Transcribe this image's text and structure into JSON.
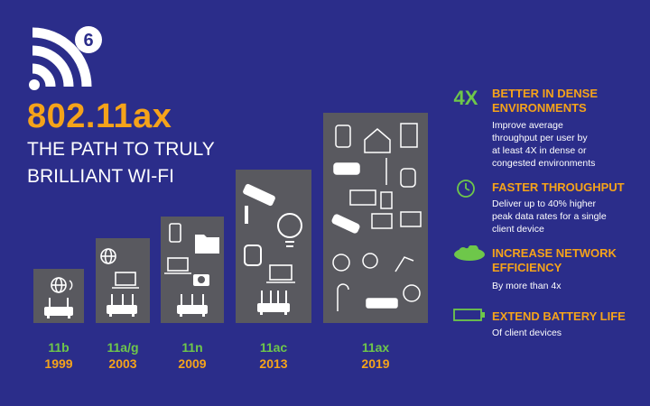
{
  "header": {
    "title": "802.11ax",
    "subtitle_line1": "THE PATH TO TRULY",
    "subtitle_line2": "BRILLIANT WI-FI",
    "logo_badge": "6"
  },
  "generations": [
    {
      "name": "11b",
      "year": "1999"
    },
    {
      "name": "11a/g",
      "year": "2003"
    },
    {
      "name": "11n",
      "year": "2009"
    },
    {
      "name": "11ac",
      "year": "2013"
    },
    {
      "name": "11ax",
      "year": "2019"
    }
  ],
  "features": [
    {
      "icon_text": "4X",
      "icon": "four-x-icon",
      "title_line1": "BETTER IN DENSE",
      "title_line2": "ENVIRONMENTS",
      "desc_lines": [
        "Improve average",
        "throughput per user by",
        "at least 4X in dense or",
        "congested environments"
      ]
    },
    {
      "icon": "stopwatch-icon",
      "title_line1": "FASTER THROUGHPUT",
      "desc_lines": [
        "Deliver up to 40% higher",
        "peak data rates for a single",
        "client device"
      ]
    },
    {
      "icon": "cloud-icon",
      "title_line1": "INCREASE NETWORK",
      "title_line2": "EFFICIENCY",
      "desc_lines": [
        "By more than 4x"
      ]
    },
    {
      "icon": "battery-icon",
      "title_line1": "EXTEND BATTERY LIFE",
      "desc_lines": [
        "Of client devices"
      ]
    }
  ],
  "colors": {
    "background": "#2b2d8a",
    "accent_orange": "#f5a31a",
    "accent_green": "#6ec74a",
    "panel_gray": "#59595f"
  }
}
